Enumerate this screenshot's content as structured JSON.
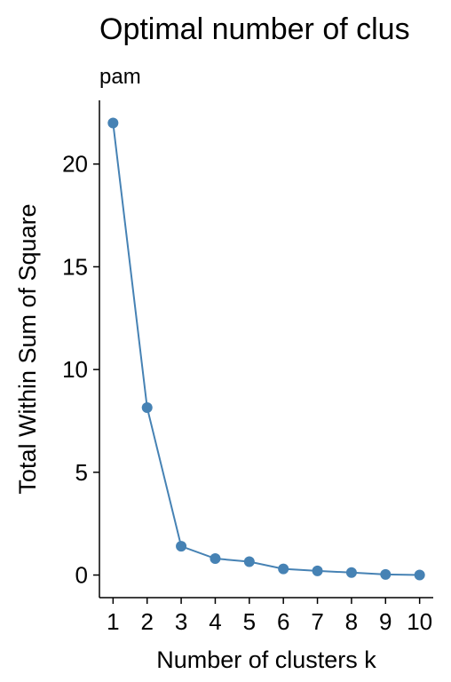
{
  "chart_data": {
    "type": "line",
    "title": "Optimal number of clus",
    "subtitle": "pam",
    "xlabel": "Number of clusters k",
    "ylabel": "Total Within Sum of Square",
    "x": [
      1,
      2,
      3,
      4,
      5,
      6,
      7,
      8,
      9,
      10
    ],
    "series": [
      {
        "values": [
          22.0,
          8.15,
          1.4,
          0.8,
          0.65,
          0.3,
          0.2,
          0.12,
          0.03,
          0.0
        ]
      }
    ],
    "xticks": [
      "1",
      "2",
      "3",
      "4",
      "5",
      "6",
      "7",
      "8",
      "9",
      "10"
    ],
    "yticks": [
      0,
      5,
      10,
      15,
      20
    ],
    "ylim": [
      -1.1,
      23.1
    ],
    "xlim": [
      0.6,
      10.4
    ],
    "grid": false,
    "legend": "none",
    "colors": {
      "series": "#4682b4",
      "axis": "#000000"
    }
  }
}
